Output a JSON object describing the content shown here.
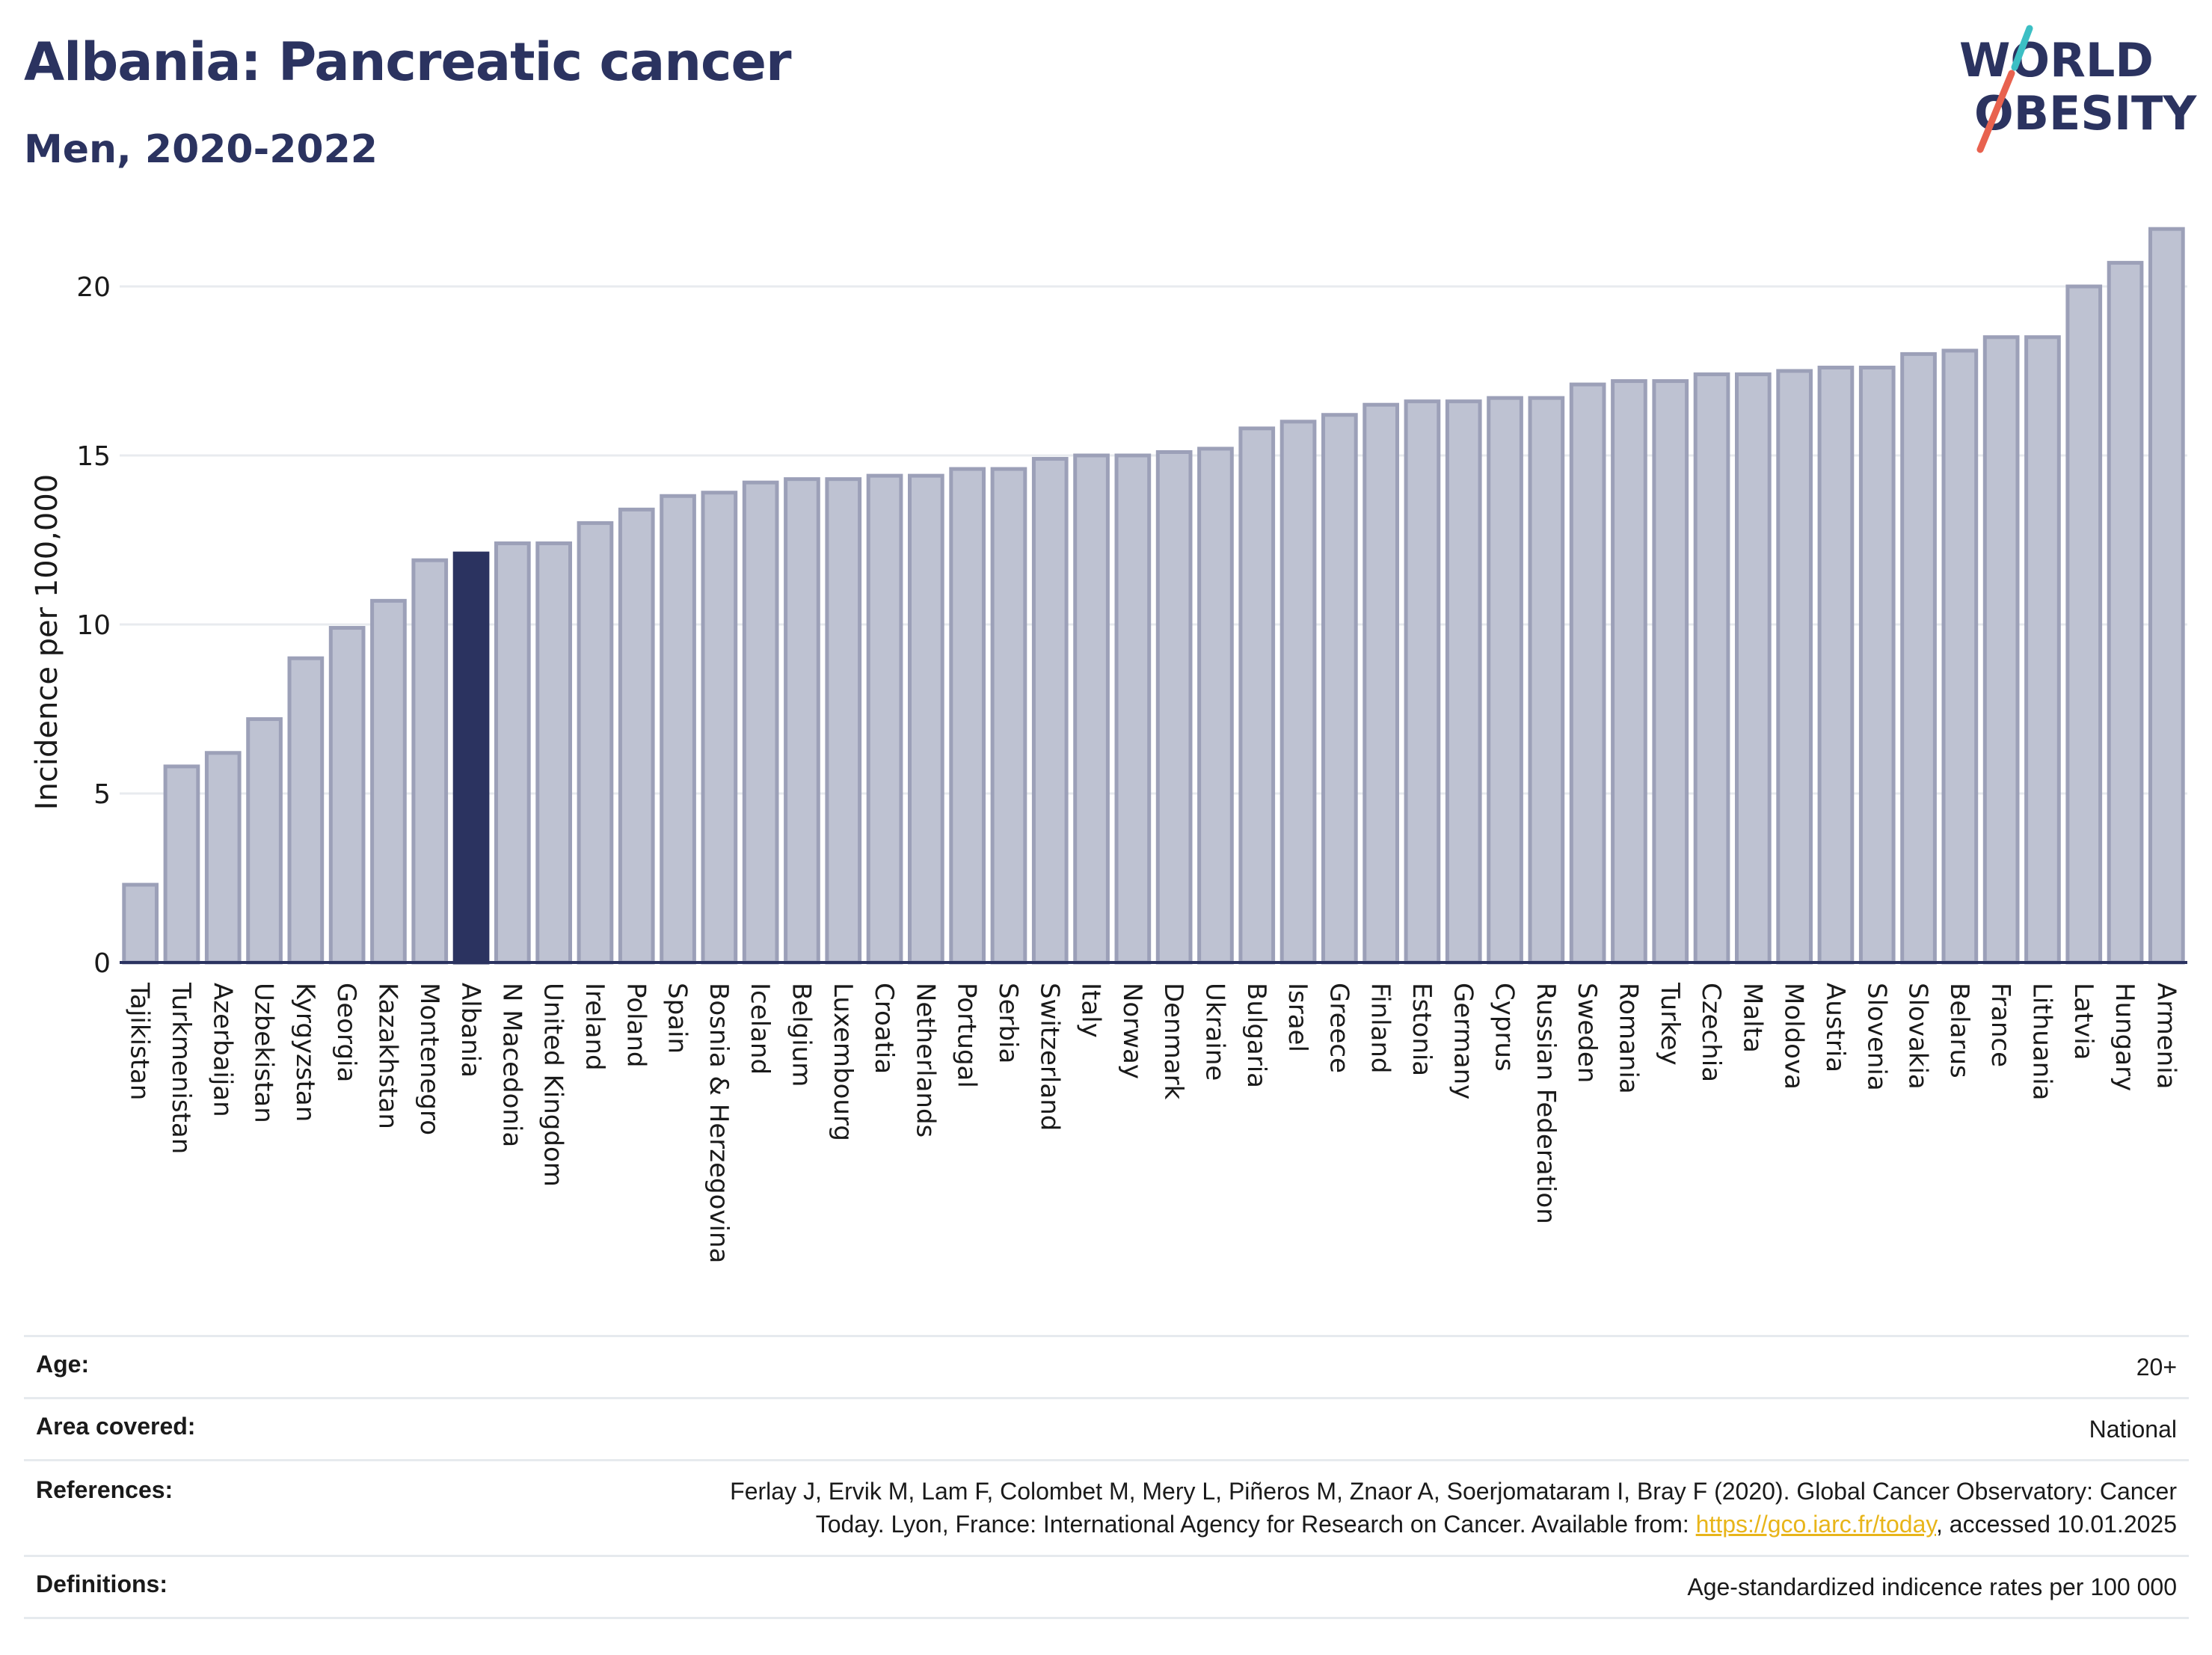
{
  "header": {
    "title": "Albania: Pancreatic cancer",
    "subtitle": "Men, 2020-2022"
  },
  "logo": {
    "line1": "WORLD",
    "line2": "OBESITY",
    "colors": {
      "text": "#2b3360",
      "slash_red": "#e8624f",
      "slash_teal": "#3cbfc4"
    }
  },
  "chart_data": {
    "type": "bar",
    "title": "Albania: Pancreatic cancer",
    "subtitle": "Men, 2020-2022",
    "xlabel": "",
    "ylabel": "Incidence per 100,000",
    "ylim": [
      0,
      22.5
    ],
    "yticks": [
      0,
      5,
      10,
      15,
      20
    ],
    "grid": true,
    "highlight": "Albania",
    "colors": {
      "bar": "#bec2d2",
      "bar_edge": "#9ca0b8",
      "highlight": "#2b3360",
      "grid": "#e8ebef",
      "axis": "#2b3360"
    },
    "categories": [
      "Tajikistan",
      "Turkmenistan",
      "Azerbaijan",
      "Uzbekistan",
      "Kyrgyzstan",
      "Georgia",
      "Kazakhstan",
      "Montenegro",
      "Albania",
      "N Macedonia",
      "United Kingdom",
      "Ireland",
      "Poland",
      "Spain",
      "Bosnia & Herzegovina",
      "Iceland",
      "Belgium",
      "Luxembourg",
      "Croatia",
      "Netherlands",
      "Portugal",
      "Serbia",
      "Switzerland",
      "Italy",
      "Norway",
      "Denmark",
      "Ukraine",
      "Bulgaria",
      "Israel",
      "Greece",
      "Finland",
      "Estonia",
      "Germany",
      "Cyprus",
      "Russian Federation",
      "Sweden",
      "Romania",
      "Turkey",
      "Czechia",
      "Malta",
      "Moldova",
      "Austria",
      "Slovenia",
      "Slovakia",
      "Belarus",
      "France",
      "Lithuania",
      "Latvia",
      "Hungary",
      "Armenia"
    ],
    "values": [
      2.3,
      5.8,
      6.2,
      7.2,
      9.0,
      9.9,
      10.7,
      11.9,
      12.1,
      12.4,
      12.4,
      13.0,
      13.4,
      13.8,
      13.9,
      14.2,
      14.3,
      14.3,
      14.4,
      14.4,
      14.6,
      14.6,
      14.9,
      15.0,
      15.0,
      15.1,
      15.2,
      15.8,
      16.0,
      16.2,
      16.5,
      16.6,
      16.6,
      16.7,
      16.7,
      17.1,
      17.2,
      17.2,
      17.4,
      17.4,
      17.5,
      17.6,
      17.6,
      18.0,
      18.1,
      18.5,
      18.5,
      20.0,
      20.7,
      21.7
    ]
  },
  "meta": {
    "age_label": "Age:",
    "age_value": "20+",
    "area_label": "Area covered:",
    "area_value": "National",
    "references_label": "References:",
    "references_line1": "Ferlay J, Ervik M, Lam F, Colombet M, Mery L, Piñeros M, Znaor A, Soerjomataram I, Bray F (2020). Global Cancer Observatory: Cancer",
    "references_line2_pre": "Today. Lyon, France: International Agency for Research on Cancer. Available from: ",
    "references_link": "https://gco.iarc.fr/today",
    "references_line2_post": ", accessed 10.01.2025",
    "definitions_label": "Definitions:",
    "definitions_value": "Age-standardized indicence rates per 100 000"
  }
}
